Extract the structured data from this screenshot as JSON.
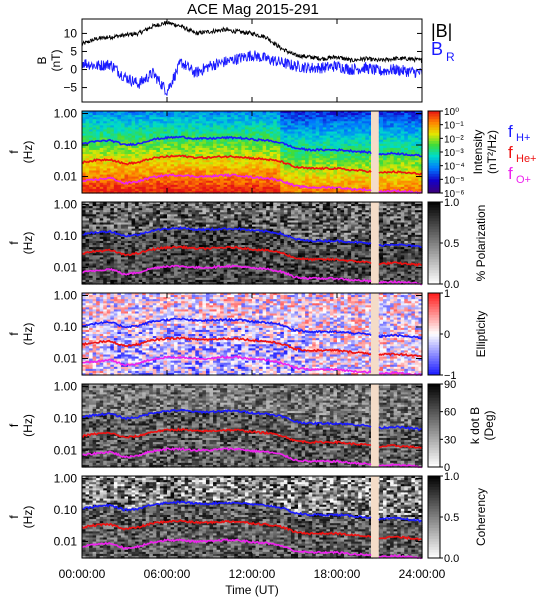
{
  "title": "ACE Mag 2015-291",
  "colors": {
    "B": "#000000",
    "BR": "#1a1aff",
    "fH": "#1a1aff",
    "fHe": "#ee1111",
    "fO": "#ee22ee"
  },
  "chart_data": [
    {
      "type": "line",
      "panel": "field",
      "ylabel": [
        "B",
        "(nT)"
      ],
      "ylim": [
        -9,
        14
      ],
      "yticks": [
        {
          "v": 10,
          "t": "10"
        },
        {
          "v": 5,
          "t": "5"
        },
        {
          "v": 0,
          "t": "0"
        },
        {
          "v": -5,
          "t": "−5"
        }
      ],
      "legend": [
        "|B|",
        "B",
        "R"
      ],
      "xlim": [
        0,
        24
      ],
      "series": [
        {
          "name": "|B|",
          "x": [
            0,
            1,
            2,
            3,
            4,
            5,
            6,
            7,
            8,
            9,
            10,
            11,
            12,
            13,
            14,
            15,
            16,
            17,
            18,
            19,
            20,
            21,
            22,
            23,
            24
          ],
          "values": [
            7,
            8.5,
            9,
            9.5,
            10,
            12,
            13,
            12,
            10,
            10.5,
            11,
            10.5,
            10,
            9,
            6,
            4,
            3.5,
            3,
            3.5,
            2.5,
            3,
            2.5,
            3,
            3,
            2.5
          ]
        },
        {
          "name": "B_R",
          "x": [
            0,
            1,
            2,
            3,
            4,
            5,
            6,
            7,
            8,
            9,
            10,
            11,
            12,
            13,
            14,
            15,
            16,
            17,
            18,
            19,
            20,
            21,
            22,
            23,
            24
          ],
          "values": [
            2,
            1,
            1.5,
            -2,
            -4,
            -1,
            -6,
            2,
            -1,
            1,
            2,
            3,
            4,
            3,
            2,
            1,
            0.5,
            0.5,
            1,
            0,
            0.5,
            -0.5,
            0,
            -0.5,
            -1
          ]
        }
      ]
    },
    {
      "type": "heatmap",
      "panel": "intensity",
      "ylabel": [
        "f",
        "(Hz)"
      ],
      "cbar_label": [
        "Intensity",
        "(nT²/Hz)"
      ],
      "cbar_ticks": [
        "10⁰",
        "10⁻¹",
        "10⁻²",
        "10⁻³",
        "10⁻⁴",
        "10⁻⁵",
        "10⁻⁶"
      ],
      "legend": [
        "f",
        "H+",
        "f",
        "He+",
        "f",
        "O+"
      ]
    },
    {
      "type": "heatmap",
      "panel": "polarization",
      "ylabel": [
        "f",
        "(Hz)"
      ],
      "cbar_label": [
        "% Polarization"
      ],
      "cbar_ticks": [
        "1.0",
        "0.5",
        "0.0"
      ]
    },
    {
      "type": "heatmap",
      "panel": "ellipticity",
      "ylabel": [
        "f",
        "(Hz)"
      ],
      "cbar_label": [
        "Ellipticity"
      ],
      "cbar_ticks": [
        "1",
        "0",
        "−1"
      ]
    },
    {
      "type": "heatmap",
      "panel": "kdotb",
      "ylabel": [
        "f",
        "(Hz)"
      ],
      "cbar_label": [
        "k dot B",
        "(Deg)"
      ],
      "cbar_ticks": [
        "90",
        "60",
        "30",
        "0"
      ]
    },
    {
      "type": "heatmap",
      "panel": "coherency",
      "ylabel": [
        "f",
        "(Hz)"
      ],
      "cbar_label": [
        "Coherency"
      ],
      "cbar_ticks": [
        "1.0",
        "0.5",
        "0.0"
      ]
    }
  ],
  "freq_axis": {
    "ylim": [
      0.003,
      1.2
    ],
    "yticks": [
      {
        "v": 1,
        "t": "1.00"
      },
      {
        "v": 0.1,
        "t": "0.10"
      },
      {
        "v": 0.01,
        "t": "0.01"
      }
    ]
  },
  "gyro_lines": {
    "x": [
      0,
      1,
      2,
      3,
      4,
      5,
      6,
      7,
      8,
      9,
      10,
      11,
      12,
      13,
      14,
      15,
      16,
      17,
      18,
      19,
      20,
      21,
      22,
      23,
      24
    ],
    "fH": [
      0.11,
      0.13,
      0.14,
      0.1,
      0.11,
      0.15,
      0.17,
      0.18,
      0.16,
      0.16,
      0.17,
      0.17,
      0.15,
      0.14,
      0.12,
      0.08,
      0.07,
      0.07,
      0.07,
      0.065,
      0.06,
      0.05,
      0.055,
      0.05,
      0.045
    ],
    "fHe": [
      0.028,
      0.033,
      0.035,
      0.025,
      0.028,
      0.038,
      0.043,
      0.045,
      0.04,
      0.04,
      0.043,
      0.043,
      0.038,
      0.035,
      0.03,
      0.02,
      0.018,
      0.018,
      0.018,
      0.016,
      0.015,
      0.013,
      0.014,
      0.013,
      0.012
    ],
    "fO": [
      0.007,
      0.008,
      0.009,
      0.006,
      0.007,
      0.0095,
      0.011,
      0.011,
      0.01,
      0.01,
      0.011,
      0.011,
      0.0095,
      0.009,
      0.0075,
      0.005,
      0.0045,
      0.0045,
      0.0045,
      0.004,
      0.0038,
      0.0033,
      0.0035,
      0.0033,
      0.003
    ]
  },
  "data_gap": {
    "x": [
      20.4,
      20.95
    ]
  },
  "xaxis": {
    "label": "Time (UT)",
    "xlim": [
      0,
      24
    ],
    "ticks": [
      {
        "v": 0,
        "t": "00:00:00"
      },
      {
        "v": 6,
        "t": "06:00:00"
      },
      {
        "v": 12,
        "t": "12:00:00"
      },
      {
        "v": 18,
        "t": "18:00:00"
      },
      {
        "v": 24,
        "t": "24:00:00"
      }
    ]
  }
}
